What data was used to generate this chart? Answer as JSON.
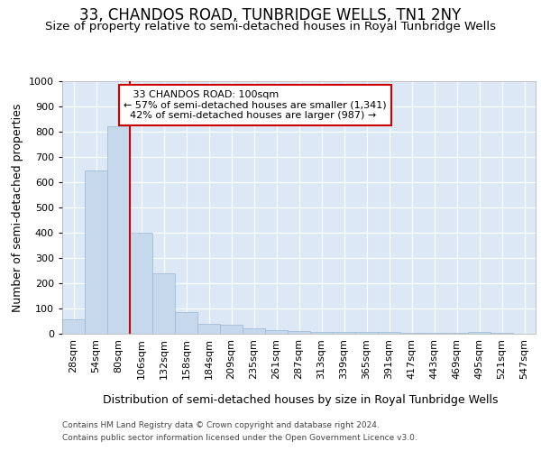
{
  "title": "33, CHANDOS ROAD, TUNBRIDGE WELLS, TN1 2NY",
  "subtitle": "Size of property relative to semi-detached houses in Royal Tunbridge Wells",
  "xlabel_dist": "Distribution of semi-detached houses by size in Royal Tunbridge Wells",
  "ylabel": "Number of semi-detached properties",
  "footer1": "Contains HM Land Registry data © Crown copyright and database right 2024.",
  "footer2": "Contains public sector information licensed under the Open Government Licence v3.0.",
  "categories": [
    "28sqm",
    "54sqm",
    "80sqm",
    "106sqm",
    "132sqm",
    "158sqm",
    "184sqm",
    "209sqm",
    "235sqm",
    "261sqm",
    "287sqm",
    "313sqm",
    "339sqm",
    "365sqm",
    "391sqm",
    "417sqm",
    "443sqm",
    "469sqm",
    "495sqm",
    "521sqm",
    "547sqm"
  ],
  "values": [
    57,
    645,
    820,
    400,
    240,
    85,
    40,
    35,
    22,
    15,
    10,
    8,
    8,
    7,
    7,
    5,
    5,
    5,
    6,
    5,
    0
  ],
  "bar_color": "#c5d8ec",
  "bar_edge_color": "#9ab8d4",
  "property_label": "33 CHANDOS ROAD: 100sqm",
  "smaller_pct": "57%",
  "smaller_count": "1,341",
  "larger_pct": "42%",
  "larger_count": "987",
  "annotation_box_color": "#cc0000",
  "property_line_x": 2.5,
  "ylim": [
    0,
    1000
  ],
  "yticks": [
    0,
    100,
    200,
    300,
    400,
    500,
    600,
    700,
    800,
    900,
    1000
  ],
  "background_color": "#ffffff",
  "plot_bg_color": "#dce8f5",
  "grid_color": "#ffffff",
  "title_fontsize": 12,
  "subtitle_fontsize": 9.5,
  "axis_label_fontsize": 9,
  "tick_fontsize": 8,
  "footer_fontsize": 6.5
}
